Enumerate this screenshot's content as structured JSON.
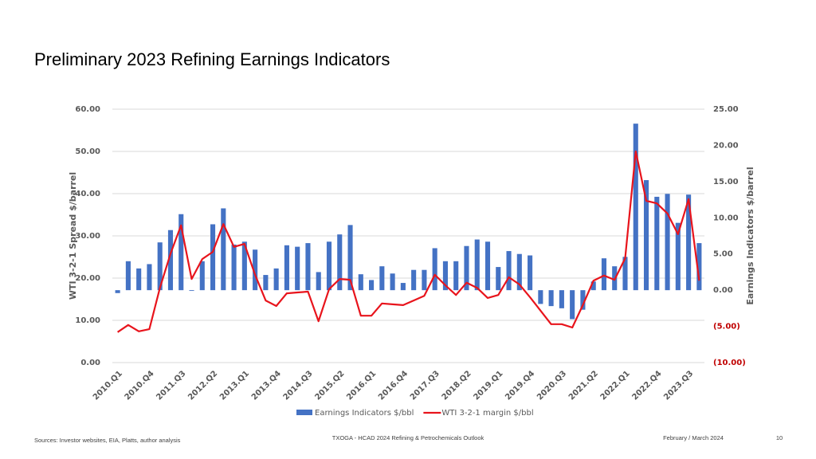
{
  "chart_data": {
    "type": "bar",
    "title": "Preliminary 2023 Refining Earnings Indicators",
    "ylabel": "WTI 3-2-1 Spread $/barrel",
    "y2label": "Earnings Indicators $/barrel",
    "categories": [
      "2010.Q1",
      null,
      null,
      "2010.Q4",
      null,
      null,
      "2011.Q3",
      null,
      null,
      "2012.Q2",
      null,
      null,
      "2013.Q1",
      null,
      null,
      "2013.Q4",
      null,
      null,
      "2014.Q3",
      null,
      null,
      "2015.Q2",
      null,
      null,
      "2016.Q1",
      null,
      null,
      "2016.Q4",
      null,
      null,
      "2017.Q3",
      null,
      null,
      "2018.Q2",
      null,
      null,
      "2019.Q1",
      null,
      null,
      "2019.Q4",
      null,
      null,
      "2020.Q3",
      null,
      null,
      "2021.Q2",
      null,
      null,
      "2022.Q1",
      null,
      null,
      "2022.Q4",
      null,
      null,
      "2023.Q3",
      null
    ],
    "series": [
      {
        "name": "Earnings Indicators $/bbl",
        "type": "bar",
        "axis": "y2",
        "color": "#4472c4",
        "values": [
          -0.4,
          4.0,
          3.0,
          3.6,
          6.6,
          8.3,
          10.5,
          -0.1,
          4.0,
          9.1,
          11.3,
          6.3,
          6.7,
          5.6,
          2.1,
          3.0,
          6.2,
          6.0,
          6.5,
          2.5,
          6.7,
          7.7,
          9.0,
          2.2,
          1.4,
          3.3,
          2.3,
          1.0,
          2.8,
          2.8,
          5.8,
          4.0,
          4.0,
          6.1,
          7.0,
          6.7,
          3.2,
          5.4,
          5.0,
          4.8,
          -1.9,
          -2.2,
          -2.5,
          -4.0,
          -2.7,
          1.2,
          4.4,
          3.3,
          4.6,
          23.0,
          15.2,
          12.9,
          13.3,
          9.3,
          13.2,
          6.5
        ]
      },
      {
        "name": "WTI 3-2-1 margin $/bbl",
        "type": "line",
        "color": "#e8141c",
        "values": [
          7.2,
          8.9,
          7.4,
          7.9,
          17.7,
          25.8,
          32.5,
          19.8,
          24.5,
          26.2,
          32.8,
          27.4,
          28.1,
          20.8,
          14.7,
          13.4,
          16.4,
          16.6,
          16.8,
          9.8,
          17.4,
          19.8,
          19.6,
          11.1,
          11.1,
          14.0,
          13.8,
          13.6,
          14.7,
          15.8,
          20.8,
          18.3,
          16.0,
          18.9,
          17.7,
          15.3,
          16.0,
          20.2,
          18.5,
          15.5,
          12.3,
          9.1,
          9.1,
          8.3,
          13.6,
          19.4,
          20.6,
          19.6,
          24.7,
          50.0,
          38.3,
          37.7,
          35.3,
          30.4,
          38.7,
          19.4
        ]
      }
    ],
    "ylim": [
      0,
      60
    ],
    "yticks": [
      {
        "value": 0,
        "label": "0.00"
      },
      {
        "value": 10,
        "label": "10.00"
      },
      {
        "value": 20,
        "label": "20.00"
      },
      {
        "value": 30,
        "label": "30.00"
      },
      {
        "value": 40,
        "label": "40.00"
      },
      {
        "value": 50,
        "label": "50.00"
      },
      {
        "value": 60,
        "label": "60.00"
      }
    ],
    "y2lim": [
      -10,
      25
    ],
    "y2ticks": [
      {
        "value": -10,
        "label": "(10.00)"
      },
      {
        "value": -5,
        "label": "(5.00)"
      },
      {
        "value": 0,
        "label": "0.00"
      },
      {
        "value": 5,
        "label": "5.00"
      },
      {
        "value": 10,
        "label": "10.00"
      },
      {
        "value": 15,
        "label": "15.00"
      },
      {
        "value": 20,
        "label": "20.00"
      },
      {
        "value": 25,
        "label": "25.00"
      }
    ],
    "grid": true,
    "legend": "bottom"
  },
  "footer": {
    "source": "Sources: Investor websites, EIA, Platts, author analysis",
    "center": "TXOGA - HCAD 2024 Refining & Petrochemicals Outlook",
    "date": "February / March 2024",
    "page": "10"
  }
}
